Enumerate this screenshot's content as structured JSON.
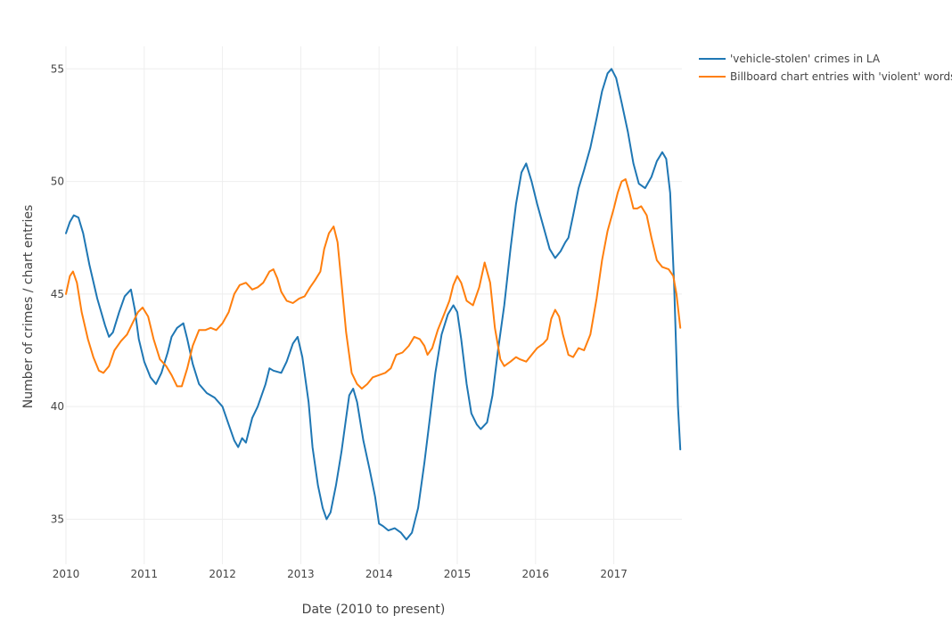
{
  "chart_data": {
    "type": "line",
    "xlabel": "Date (2010 to present)",
    "ylabel": "Number of crimes / chart entries",
    "xlim": [
      2010.0,
      2017.87
    ],
    "ylim": [
      33,
      56
    ],
    "x_ticks": [
      2010,
      2011,
      2012,
      2013,
      2014,
      2015,
      2016,
      2017
    ],
    "y_ticks": [
      35,
      40,
      45,
      50,
      55
    ],
    "grid": true,
    "legend_position": "top-right",
    "series": [
      {
        "name": "'vehicle-stolen' crimes in LA",
        "color": "#1f77b4",
        "points": [
          [
            2010.0,
            47.7
          ],
          [
            2010.05,
            48.2
          ],
          [
            2010.1,
            48.5
          ],
          [
            2010.16,
            48.4
          ],
          [
            2010.22,
            47.7
          ],
          [
            2010.3,
            46.3
          ],
          [
            2010.4,
            44.8
          ],
          [
            2010.5,
            43.6
          ],
          [
            2010.55,
            43.1
          ],
          [
            2010.6,
            43.3
          ],
          [
            2010.68,
            44.2
          ],
          [
            2010.75,
            44.9
          ],
          [
            2010.83,
            45.2
          ],
          [
            2010.88,
            44.3
          ],
          [
            2010.93,
            43.0
          ],
          [
            2011.0,
            42.0
          ],
          [
            2011.08,
            41.3
          ],
          [
            2011.15,
            41.0
          ],
          [
            2011.22,
            41.5
          ],
          [
            2011.3,
            42.4
          ],
          [
            2011.35,
            43.1
          ],
          [
            2011.42,
            43.5
          ],
          [
            2011.5,
            43.7
          ],
          [
            2011.55,
            43.0
          ],
          [
            2011.62,
            41.9
          ],
          [
            2011.7,
            41.0
          ],
          [
            2011.8,
            40.6
          ],
          [
            2011.9,
            40.4
          ],
          [
            2012.0,
            40.0
          ],
          [
            2012.08,
            39.2
          ],
          [
            2012.15,
            38.5
          ],
          [
            2012.2,
            38.2
          ],
          [
            2012.25,
            38.6
          ],
          [
            2012.3,
            38.4
          ],
          [
            2012.38,
            39.5
          ],
          [
            2012.45,
            40.0
          ],
          [
            2012.55,
            41.0
          ],
          [
            2012.6,
            41.7
          ],
          [
            2012.65,
            41.6
          ],
          [
            2012.75,
            41.5
          ],
          [
            2012.82,
            42.0
          ],
          [
            2012.9,
            42.8
          ],
          [
            2012.96,
            43.1
          ],
          [
            2013.02,
            42.2
          ],
          [
            2013.1,
            40.2
          ],
          [
            2013.15,
            38.2
          ],
          [
            2013.22,
            36.5
          ],
          [
            2013.28,
            35.5
          ],
          [
            2013.33,
            35.0
          ],
          [
            2013.38,
            35.3
          ],
          [
            2013.45,
            36.5
          ],
          [
            2013.52,
            38.0
          ],
          [
            2013.58,
            39.5
          ],
          [
            2013.62,
            40.5
          ],
          [
            2013.67,
            40.8
          ],
          [
            2013.72,
            40.2
          ],
          [
            2013.8,
            38.5
          ],
          [
            2013.88,
            37.2
          ],
          [
            2013.95,
            36.0
          ],
          [
            2014.0,
            34.8
          ],
          [
            2014.05,
            34.7
          ],
          [
            2014.12,
            34.5
          ],
          [
            2014.2,
            34.6
          ],
          [
            2014.28,
            34.4
          ],
          [
            2014.35,
            34.1
          ],
          [
            2014.42,
            34.4
          ],
          [
            2014.5,
            35.5
          ],
          [
            2014.58,
            37.5
          ],
          [
            2014.65,
            39.5
          ],
          [
            2014.72,
            41.5
          ],
          [
            2014.8,
            43.2
          ],
          [
            2014.88,
            44.1
          ],
          [
            2014.95,
            44.5
          ],
          [
            2015.0,
            44.2
          ],
          [
            2015.05,
            43.0
          ],
          [
            2015.12,
            41.0
          ],
          [
            2015.18,
            39.7
          ],
          [
            2015.25,
            39.2
          ],
          [
            2015.3,
            39.0
          ],
          [
            2015.38,
            39.3
          ],
          [
            2015.45,
            40.5
          ],
          [
            2015.52,
            42.5
          ],
          [
            2015.6,
            44.5
          ],
          [
            2015.68,
            47.0
          ],
          [
            2015.75,
            49.0
          ],
          [
            2015.82,
            50.4
          ],
          [
            2015.88,
            50.8
          ],
          [
            2015.95,
            50.0
          ],
          [
            2016.02,
            49.0
          ],
          [
            2016.1,
            48.0
          ],
          [
            2016.18,
            47.0
          ],
          [
            2016.25,
            46.6
          ],
          [
            2016.32,
            46.9
          ],
          [
            2016.38,
            47.3
          ],
          [
            2016.42,
            47.5
          ],
          [
            2016.48,
            48.5
          ],
          [
            2016.55,
            49.7
          ],
          [
            2016.62,
            50.5
          ],
          [
            2016.7,
            51.5
          ],
          [
            2016.78,
            52.8
          ],
          [
            2016.85,
            54.0
          ],
          [
            2016.92,
            54.8
          ],
          [
            2016.97,
            55.0
          ],
          [
            2017.03,
            54.6
          ],
          [
            2017.1,
            53.5
          ],
          [
            2017.18,
            52.2
          ],
          [
            2017.25,
            50.8
          ],
          [
            2017.32,
            49.9
          ],
          [
            2017.4,
            49.7
          ],
          [
            2017.48,
            50.2
          ],
          [
            2017.55,
            50.9
          ],
          [
            2017.62,
            51.3
          ],
          [
            2017.67,
            51.0
          ],
          [
            2017.72,
            49.5
          ],
          [
            2017.77,
            45.5
          ],
          [
            2017.82,
            40.0
          ],
          [
            2017.85,
            38.1
          ]
        ]
      },
      {
        "name": "Billboard chart entries with 'violent' words",
        "color": "#ff7f0e",
        "points": [
          [
            2010.0,
            45.0
          ],
          [
            2010.05,
            45.8
          ],
          [
            2010.09,
            46.0
          ],
          [
            2010.14,
            45.5
          ],
          [
            2010.2,
            44.2
          ],
          [
            2010.28,
            43.0
          ],
          [
            2010.35,
            42.2
          ],
          [
            2010.42,
            41.6
          ],
          [
            2010.48,
            41.5
          ],
          [
            2010.55,
            41.8
          ],
          [
            2010.62,
            42.5
          ],
          [
            2010.7,
            42.9
          ],
          [
            2010.78,
            43.2
          ],
          [
            2010.85,
            43.7
          ],
          [
            2010.92,
            44.2
          ],
          [
            2010.98,
            44.4
          ],
          [
            2011.05,
            44.0
          ],
          [
            2011.12,
            43.0
          ],
          [
            2011.2,
            42.1
          ],
          [
            2011.28,
            41.8
          ],
          [
            2011.35,
            41.4
          ],
          [
            2011.42,
            40.9
          ],
          [
            2011.48,
            40.9
          ],
          [
            2011.55,
            41.7
          ],
          [
            2011.62,
            42.7
          ],
          [
            2011.7,
            43.4
          ],
          [
            2011.78,
            43.4
          ],
          [
            2011.85,
            43.5
          ],
          [
            2011.92,
            43.4
          ],
          [
            2012.0,
            43.7
          ],
          [
            2012.08,
            44.2
          ],
          [
            2012.15,
            45.0
          ],
          [
            2012.22,
            45.4
          ],
          [
            2012.3,
            45.5
          ],
          [
            2012.38,
            45.2
          ],
          [
            2012.45,
            45.3
          ],
          [
            2012.52,
            45.5
          ],
          [
            2012.6,
            46.0
          ],
          [
            2012.65,
            46.1
          ],
          [
            2012.7,
            45.7
          ],
          [
            2012.75,
            45.1
          ],
          [
            2012.82,
            44.7
          ],
          [
            2012.9,
            44.6
          ],
          [
            2012.98,
            44.8
          ],
          [
            2013.05,
            44.9
          ],
          [
            2013.12,
            45.3
          ],
          [
            2013.18,
            45.6
          ],
          [
            2013.25,
            46.0
          ],
          [
            2013.3,
            47.0
          ],
          [
            2013.36,
            47.7
          ],
          [
            2013.42,
            48.0
          ],
          [
            2013.47,
            47.3
          ],
          [
            2013.52,
            45.5
          ],
          [
            2013.58,
            43.3
          ],
          [
            2013.65,
            41.5
          ],
          [
            2013.72,
            41.0
          ],
          [
            2013.78,
            40.8
          ],
          [
            2013.85,
            41.0
          ],
          [
            2013.92,
            41.3
          ],
          [
            2014.0,
            41.4
          ],
          [
            2014.08,
            41.5
          ],
          [
            2014.15,
            41.7
          ],
          [
            2014.22,
            42.3
          ],
          [
            2014.3,
            42.4
          ],
          [
            2014.38,
            42.7
          ],
          [
            2014.45,
            43.1
          ],
          [
            2014.52,
            43.0
          ],
          [
            2014.58,
            42.7
          ],
          [
            2014.62,
            42.3
          ],
          [
            2014.68,
            42.6
          ],
          [
            2014.75,
            43.4
          ],
          [
            2014.82,
            44.0
          ],
          [
            2014.9,
            44.7
          ],
          [
            2014.95,
            45.4
          ],
          [
            2015.0,
            45.8
          ],
          [
            2015.05,
            45.5
          ],
          [
            2015.12,
            44.7
          ],
          [
            2015.2,
            44.5
          ],
          [
            2015.28,
            45.3
          ],
          [
            2015.35,
            46.4
          ],
          [
            2015.42,
            45.5
          ],
          [
            2015.48,
            43.5
          ],
          [
            2015.55,
            42.1
          ],
          [
            2015.6,
            41.8
          ],
          [
            2015.68,
            42.0
          ],
          [
            2015.75,
            42.2
          ],
          [
            2015.8,
            42.1
          ],
          [
            2015.88,
            42.0
          ],
          [
            2015.95,
            42.3
          ],
          [
            2016.02,
            42.6
          ],
          [
            2016.1,
            42.8
          ],
          [
            2016.15,
            43.0
          ],
          [
            2016.2,
            43.9
          ],
          [
            2016.25,
            44.3
          ],
          [
            2016.3,
            44.0
          ],
          [
            2016.35,
            43.2
          ],
          [
            2016.42,
            42.3
          ],
          [
            2016.48,
            42.2
          ],
          [
            2016.55,
            42.6
          ],
          [
            2016.62,
            42.5
          ],
          [
            2016.7,
            43.2
          ],
          [
            2016.78,
            44.8
          ],
          [
            2016.85,
            46.5
          ],
          [
            2016.92,
            47.8
          ],
          [
            2017.0,
            48.8
          ],
          [
            2017.05,
            49.5
          ],
          [
            2017.1,
            50.0
          ],
          [
            2017.15,
            50.1
          ],
          [
            2017.2,
            49.5
          ],
          [
            2017.25,
            48.8
          ],
          [
            2017.3,
            48.8
          ],
          [
            2017.35,
            48.9
          ],
          [
            2017.42,
            48.5
          ],
          [
            2017.48,
            47.5
          ],
          [
            2017.55,
            46.5
          ],
          [
            2017.62,
            46.2
          ],
          [
            2017.7,
            46.1
          ],
          [
            2017.76,
            45.8
          ],
          [
            2017.8,
            45.0
          ],
          [
            2017.85,
            43.5
          ]
        ]
      }
    ]
  }
}
